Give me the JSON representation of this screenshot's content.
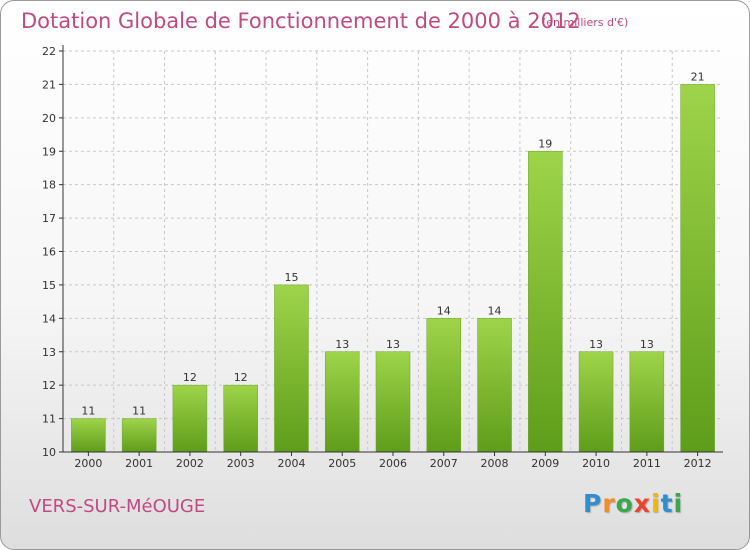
{
  "title": "Dotation Globale de Fonctionnement de 2000 à 2012",
  "subtitle": "(en milliers d'€)",
  "commune": "VERS-SUR-MéOUGE",
  "logo": {
    "letters": [
      "P",
      "r",
      "o",
      "x",
      "i",
      "t",
      "i"
    ],
    "colors": [
      "#2e8fd0",
      "#f28c28",
      "#3aa74a",
      "#e8452c",
      "#f2b705",
      "#2e8fd0",
      "#3aa74a"
    ]
  },
  "colors": {
    "title": "#c04a82",
    "bar_top": "#9ed44a",
    "bar_bottom": "#5e9d1a",
    "grid": "#c8c8c8",
    "axis": "#333333"
  },
  "chart_data": {
    "type": "bar",
    "categories": [
      "2000",
      "2001",
      "2002",
      "2003",
      "2004",
      "2005",
      "2006",
      "2007",
      "2008",
      "2009",
      "2010",
      "2011",
      "2012"
    ],
    "values": [
      11,
      11,
      12,
      12,
      15,
      13,
      13,
      14,
      14,
      19,
      13,
      13,
      21
    ],
    "data_labels": [
      "11",
      "11",
      "12",
      "12",
      "15",
      "13",
      "13",
      "14",
      "14",
      "19",
      "13",
      "13",
      "21"
    ],
    "ylim": [
      10,
      22
    ],
    "yticks": [
      "10",
      "11",
      "12",
      "13",
      "14",
      "15",
      "16",
      "17",
      "18",
      "19",
      "20",
      "21",
      "22"
    ],
    "grid": true,
    "xlabel": "",
    "ylabel": ""
  }
}
